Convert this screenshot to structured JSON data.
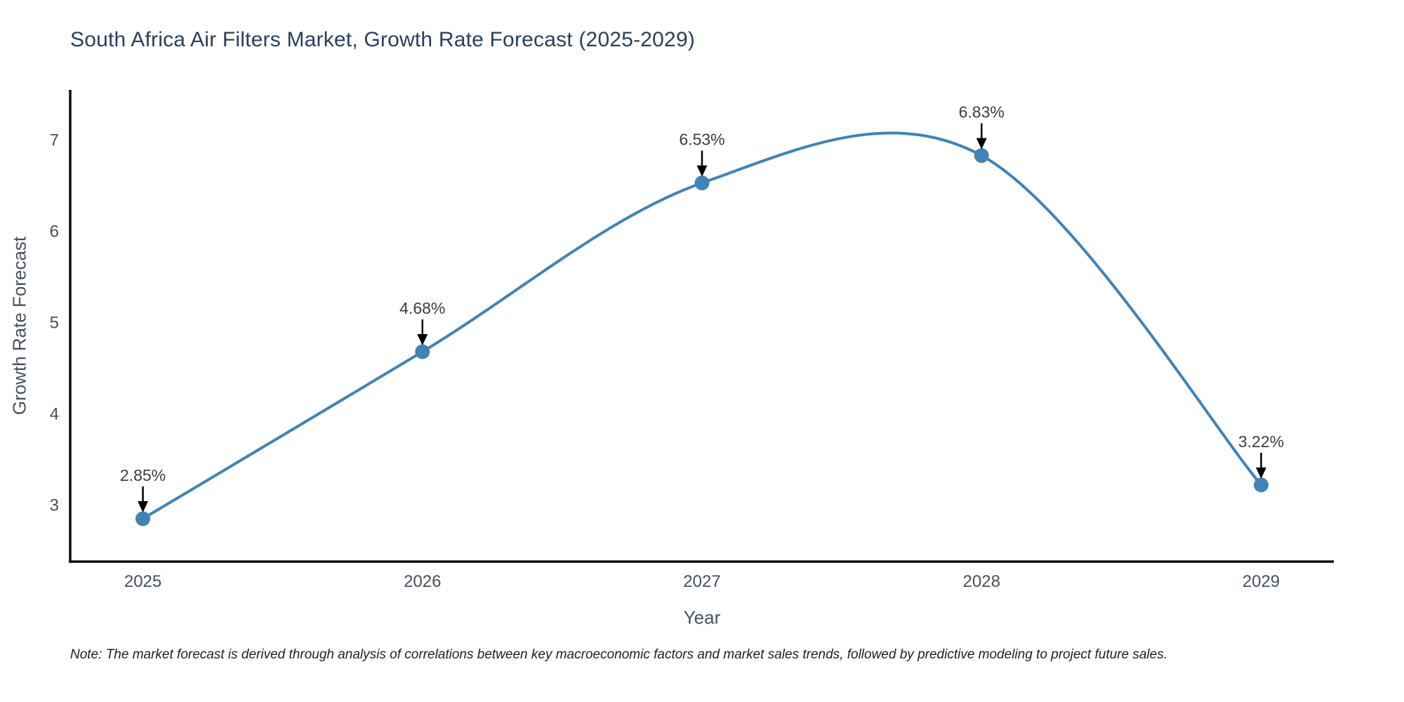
{
  "title": "South Africa Air Filters Market, Growth Rate Forecast (2025-2029)",
  "note": "Note: The market forecast is derived through analysis of correlations between key macroeconomic factors and market sales trends, followed by predictive modeling to project future sales.",
  "chart_data": {
    "type": "line",
    "line_shape": "spline",
    "title": "South Africa Air Filters Market, Growth Rate Forecast (2025-2029)",
    "xlabel": "Year",
    "ylabel": "Growth Rate Forecast",
    "x": [
      2025,
      2026,
      2027,
      2028,
      2029
    ],
    "y": [
      2.85,
      4.68,
      6.53,
      6.83,
      3.22
    ],
    "point_labels": [
      "2.85%",
      "4.68%",
      "6.53%",
      "6.83%",
      "3.22%"
    ],
    "x_tick_labels": [
      "2025",
      "2026",
      "2027",
      "2028",
      "2029"
    ],
    "y_ticks": [
      3,
      4,
      5,
      6,
      7
    ],
    "xlim": [
      2024.74,
      2029.26
    ],
    "ylim": [
      2.38,
      7.55
    ],
    "grid": false,
    "legend": "none",
    "annotations": "arrow pointing down to each data point with percent label above"
  },
  "colors": {
    "line": "#4183b6",
    "marker": "#4183b6",
    "axis_line": "#0d0d0d",
    "arrow": "#000000",
    "title_text": "#2a3f5f",
    "axis_text": "#47505e",
    "annotation_text": "#3c3c3c",
    "note_text": "#1f1f1f",
    "background": "#ffffff"
  }
}
